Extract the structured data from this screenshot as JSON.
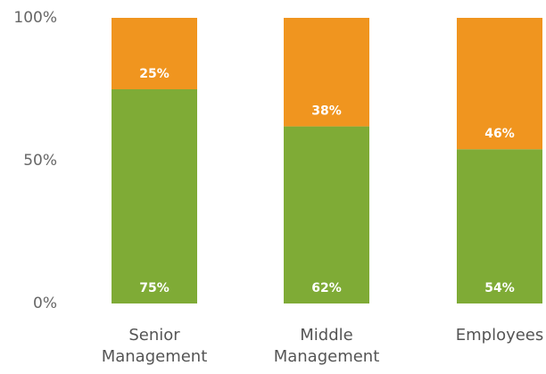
{
  "chart_data": {
    "type": "stacked_bar",
    "categories": [
      "Senior Management",
      "Middle Management",
      "Employees"
    ],
    "series": [
      {
        "color": "#7fab36",
        "values": [
          75,
          62,
          54
        ],
        "value_labels": [
          "75%",
          "62%",
          "54%"
        ]
      },
      {
        "color": "#f0951f",
        "values": [
          25,
          38,
          46
        ],
        "value_labels": [
          "25%",
          "38%",
          "46%"
        ]
      }
    ],
    "ylim": [
      0,
      100
    ],
    "yticks": [
      {
        "value": 0,
        "label": "0%"
      },
      {
        "value": 50,
        "label": "50%"
      },
      {
        "value": 100,
        "label": "100%"
      }
    ],
    "grid": false
  }
}
